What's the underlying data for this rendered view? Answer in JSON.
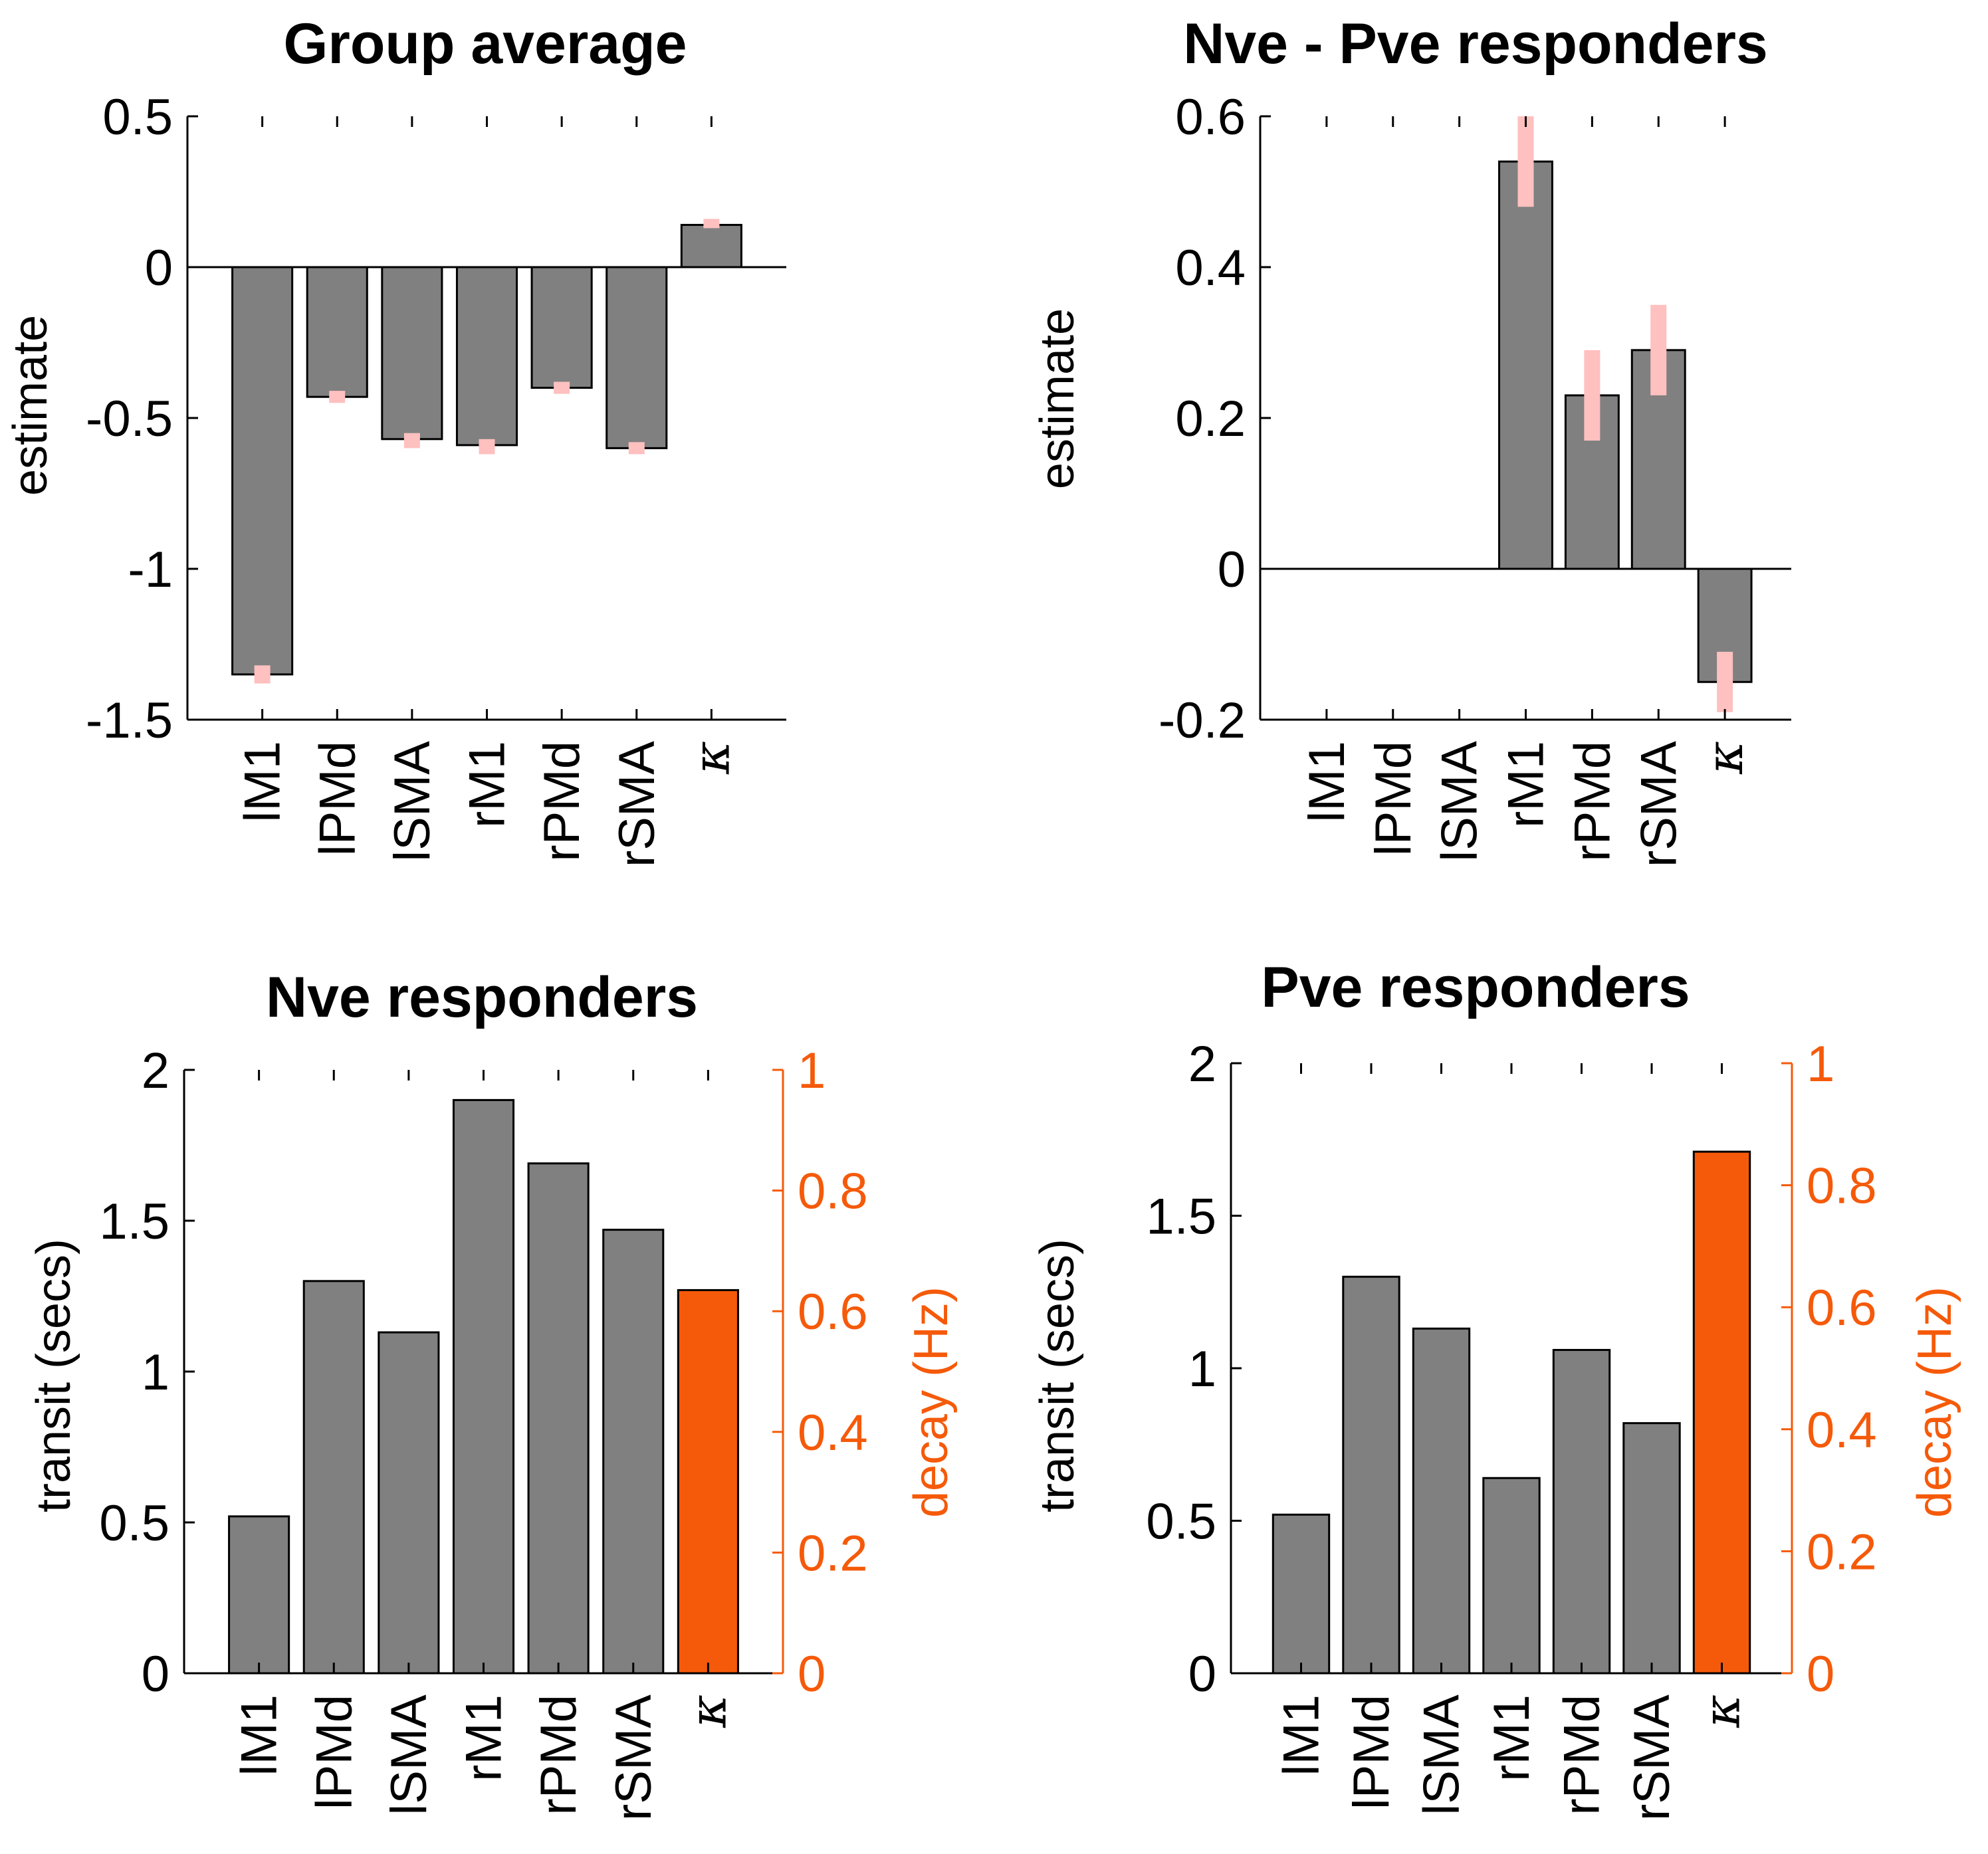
{
  "chart_data": [
    {
      "id": "group-average",
      "type": "bar",
      "title": "Group average",
      "categories": [
        "lM1",
        "lPMd",
        "lSMA",
        "rM1",
        "rPMd",
        "rSMA",
        "κ"
      ],
      "values": [
        -1.35,
        -0.43,
        -0.57,
        -0.59,
        -0.4,
        -0.6,
        0.14
      ],
      "error_bars": [
        [
          -1.38,
          -1.32
        ],
        [
          -0.45,
          -0.41
        ],
        [
          -0.6,
          -0.55
        ],
        [
          -0.62,
          -0.57
        ],
        [
          -0.42,
          -0.38
        ],
        [
          -0.62,
          -0.58
        ],
        [
          0.13,
          0.16
        ]
      ],
      "ylabel": "estimate",
      "xlabel": "",
      "ylim": [
        -1.5,
        0.5
      ],
      "yticks": [
        0.5,
        0,
        -0.5,
        -1,
        -1.5
      ],
      "ytick_labels": [
        "0.5",
        "0",
        "-0.5",
        "-1",
        "-1.5"
      ],
      "bar_color": "#808080",
      "error_color": "#ffc0c0"
    },
    {
      "id": "nve-pve",
      "type": "bar",
      "title": "Nve - Pve responders",
      "categories": [
        "lM1",
        "lPMd",
        "lSMA",
        "rM1",
        "rPMd",
        "rSMA",
        "κ"
      ],
      "values": [
        0,
        0,
        0,
        0.54,
        0.23,
        0.29,
        -0.15
      ],
      "error_bars": [
        null,
        null,
        null,
        [
          0.48,
          0.6
        ],
        [
          0.17,
          0.29
        ],
        [
          0.23,
          0.35
        ],
        [
          -0.19,
          -0.11
        ]
      ],
      "ylabel": "estimate",
      "xlabel": "",
      "ylim": [
        -0.2,
        0.6
      ],
      "yticks": [
        0.6,
        0.4,
        0.2,
        0,
        -0.2
      ],
      "ytick_labels": [
        "0.6",
        "0.4",
        "0.2",
        "0",
        "-0.2"
      ],
      "bar_color": "#808080",
      "error_color": "#ffc0c0"
    },
    {
      "id": "nve-responders",
      "type": "bar",
      "title": "Nve responders",
      "categories": [
        "lM1",
        "lPMd",
        "lSMA",
        "rM1",
        "rPMd",
        "rSMA",
        "κ"
      ],
      "values": [
        0.52,
        1.3,
        1.13,
        1.9,
        1.69,
        1.47,
        0.635
      ],
      "right_axis_index": 6,
      "ylabel": "transit (secs)",
      "ylabel_right": "decay (Hz)",
      "xlabel": "",
      "ylim": [
        0,
        2
      ],
      "ylim_right": [
        0,
        1
      ],
      "yticks": [
        2,
        1.5,
        1,
        0.5,
        0
      ],
      "ytick_labels": [
        "2",
        "1.5",
        "1",
        "0.5",
        "0"
      ],
      "yticks_right": [
        1,
        0.8,
        0.6,
        0.4,
        0.2,
        0
      ],
      "ytick_labels_right": [
        "1",
        "0.8",
        "0.6",
        "0.4",
        "0.2",
        "0"
      ],
      "bar_color": "#808080",
      "right_color": "#f55a0a"
    },
    {
      "id": "pve-responders",
      "type": "bar",
      "title": "Pve responders",
      "categories": [
        "lM1",
        "lPMd",
        "lSMA",
        "rM1",
        "rPMd",
        "rSMA",
        "κ"
      ],
      "values": [
        0.52,
        1.3,
        1.13,
        0.64,
        1.06,
        0.82,
        0.855
      ],
      "right_axis_index": 6,
      "ylabel": "transit (secs)",
      "ylabel_right": "decay (Hz)",
      "xlabel": "",
      "ylim": [
        0,
        2
      ],
      "ylim_right": [
        0,
        1
      ],
      "yticks": [
        2,
        1.5,
        1,
        0.5,
        0
      ],
      "ytick_labels": [
        "2",
        "1.5",
        "1",
        "0.5",
        "0"
      ],
      "yticks_right": [
        1,
        0.8,
        0.6,
        0.4,
        0.2,
        0
      ],
      "ytick_labels_right": [
        "1",
        "0.8",
        "0.6",
        "0.4",
        "0.2",
        "0"
      ],
      "bar_color": "#808080",
      "right_color": "#f55a0a"
    }
  ]
}
